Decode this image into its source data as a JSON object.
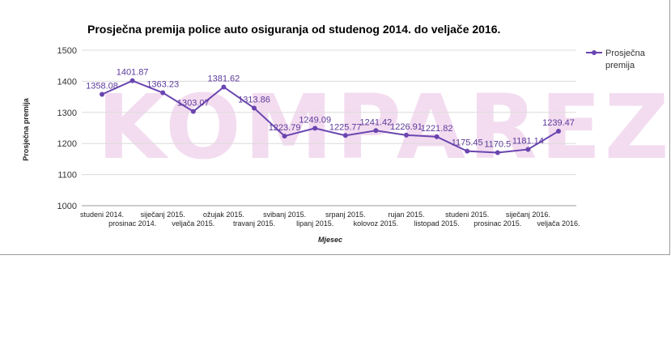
{
  "chart_data": {
    "type": "line",
    "title": "Prosječna premija police auto osiguranja od studenog 2014. do veljače 2016.",
    "xlabel": "Mjesec",
    "ylabel": "Prosječna premija",
    "ylim": [
      1000,
      1500
    ],
    "yticks": [
      1000,
      1100,
      1200,
      1300,
      1400,
      1500
    ],
    "grid": true,
    "legend_position": "top-right",
    "watermark": "KOMPAREZ",
    "categories": [
      "studeni 2014.",
      "prosinac 2014.",
      "siječanj 2015.",
      "veljača 2015.",
      "ožujak 2015.",
      "travanj 2015.",
      "svibanj 2015.",
      "lipanj 2015.",
      "srpanj 2015.",
      "kolovoz 2015.",
      "rujan 2015.",
      "listopad 2015.",
      "studeni 2015.",
      "prosinac 2015.",
      "siječanj 2016.",
      "veljača 2016."
    ],
    "series": [
      {
        "name": "Prosječna premija",
        "color": "#6a45b0",
        "values": [
          1358.08,
          1401.87,
          1363.23,
          1303.07,
          1381.62,
          1313.86,
          1223.79,
          1249.09,
          1225.77,
          1241.42,
          1226.91,
          1221.82,
          1175.45,
          1170.5,
          1181.14,
          1239.47
        ],
        "labels": [
          "1358.08",
          "1401.87",
          "1363.23",
          "1303.07",
          "1381.62",
          "1313.86",
          "1223.79",
          "1249.09",
          "1225.77",
          "1241.42",
          "1226.91",
          "1221.82",
          "1175.45",
          "1170.5",
          "1181.14",
          "1239.47"
        ]
      }
    ]
  }
}
